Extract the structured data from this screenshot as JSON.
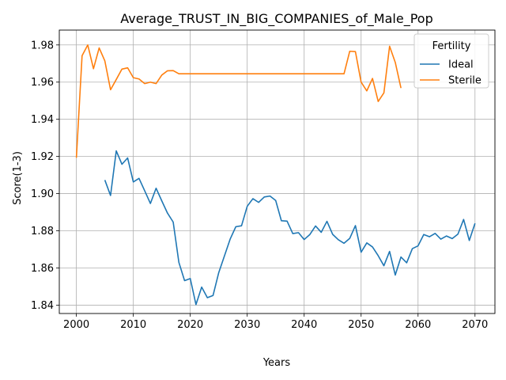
{
  "chart_data": {
    "type": "line",
    "title": "Average_TRUST_IN_BIG_COMPANIES_of_Male_Pop",
    "xlabel": "Years",
    "ylabel": "Score(1-3)",
    "xlim": [
      1997,
      2073.5
    ],
    "ylim": [
      1.8355,
      1.988
    ],
    "xticks": [
      2000,
      2010,
      2020,
      2030,
      2040,
      2050,
      2060,
      2070
    ],
    "yticks": [
      1.84,
      1.86,
      1.88,
      1.9,
      1.92,
      1.94,
      1.96,
      1.98
    ],
    "ytick_labels": [
      "1.84",
      "1.86",
      "1.88",
      "1.90",
      "1.92",
      "1.94",
      "1.96",
      "1.98"
    ],
    "grid": true,
    "legend": {
      "title": "Fertility",
      "placement": "top-right"
    },
    "series": [
      {
        "name": "Ideal",
        "color": "#1f77b4",
        "x": [
          2005,
          2006,
          2007,
          2008,
          2009,
          2010,
          2011,
          2012,
          2013,
          2014,
          2015,
          2016,
          2017,
          2018,
          2019,
          2020,
          2021,
          2022,
          2023,
          2024,
          2025,
          2026,
          2027,
          2028,
          2029,
          2030,
          2031,
          2032,
          2033,
          2034,
          2035,
          2036,
          2037,
          2038,
          2039,
          2040,
          2041,
          2042,
          2043,
          2044,
          2045,
          2046,
          2047,
          2048,
          2049,
          2050,
          2051,
          2052,
          2053,
          2054,
          2055,
          2056,
          2057,
          2058,
          2059,
          2060,
          2061,
          2062,
          2063,
          2064,
          2065,
          2066,
          2067,
          2068,
          2069,
          2070
        ],
        "y": [
          1.9073,
          1.899,
          1.923,
          1.9158,
          1.9192,
          1.9063,
          1.9082,
          1.9015,
          1.8947,
          1.9029,
          1.8961,
          1.8895,
          1.8847,
          1.863,
          1.8532,
          1.8543,
          1.8403,
          1.8497,
          1.844,
          1.8452,
          1.8575,
          1.8665,
          1.8755,
          1.8822,
          1.8827,
          1.8932,
          1.8973,
          1.8953,
          1.8982,
          1.8987,
          1.8963,
          1.8854,
          1.8852,
          1.8785,
          1.879,
          1.8753,
          1.878,
          1.8826,
          1.8792,
          1.8851,
          1.8781,
          1.8752,
          1.8733,
          1.8759,
          1.8828,
          1.8685,
          1.8735,
          1.8713,
          1.8666,
          1.8612,
          1.8689,
          1.8562,
          1.8659,
          1.8628,
          1.8704,
          1.8719,
          1.878,
          1.8768,
          1.8786,
          1.8755,
          1.8772,
          1.8758,
          1.8782,
          1.8861,
          1.8748,
          1.884
        ]
      },
      {
        "name": "Sterile",
        "color": "#ff7f0e",
        "x": [
          2000,
          2001,
          2002,
          2003,
          2004,
          2005,
          2006,
          2007,
          2008,
          2009,
          2010,
          2011,
          2012,
          2013,
          2014,
          2015,
          2016,
          2017,
          2018,
          2019,
          2020,
          2021,
          2022,
          2023,
          2024,
          2025,
          2026,
          2027,
          2028,
          2029,
          2030,
          2031,
          2032,
          2033,
          2034,
          2035,
          2036,
          2037,
          2038,
          2039,
          2040,
          2041,
          2042,
          2043,
          2044,
          2045,
          2046,
          2047,
          2048,
          2049,
          2050,
          2051,
          2052,
          2053,
          2054,
          2055,
          2056,
          2057
        ],
        "y": [
          1.9193,
          1.9742,
          1.98,
          1.9672,
          1.9784,
          1.9714,
          1.9559,
          1.9614,
          1.967,
          1.9677,
          1.9624,
          1.9617,
          1.9592,
          1.96,
          1.9592,
          1.9638,
          1.9661,
          1.9662,
          1.9645,
          1.9645,
          1.9645,
          1.9645,
          1.9645,
          1.9645,
          1.9645,
          1.9645,
          1.9645,
          1.9645,
          1.9645,
          1.9645,
          1.9645,
          1.9645,
          1.9645,
          1.9645,
          1.9645,
          1.9645,
          1.9645,
          1.9645,
          1.9645,
          1.9645,
          1.9645,
          1.9645,
          1.9645,
          1.9645,
          1.9645,
          1.9645,
          1.9645,
          1.9645,
          1.9766,
          1.9764,
          1.96,
          1.9553,
          1.962,
          1.9496,
          1.9542,
          1.9793,
          1.9706,
          1.9568
        ]
      }
    ]
  }
}
